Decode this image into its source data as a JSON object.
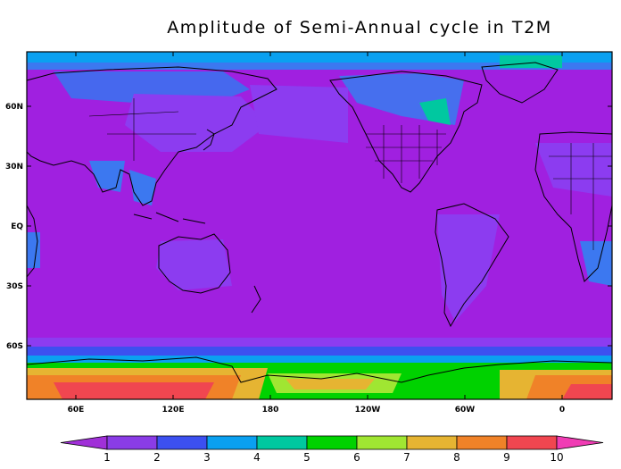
{
  "title": "Amplitude of Semi-Annual cycle in T2M",
  "lat_labels": [
    "60N",
    "30N",
    "EQ",
    "30S",
    "60S"
  ],
  "lon_labels": [
    "60E",
    "120E",
    "180",
    "120W",
    "60W",
    "0"
  ],
  "colorbar": {
    "ticks": [
      "1",
      "2",
      "3",
      "4",
      "5",
      "6",
      "7",
      "8",
      "9",
      "10"
    ],
    "colors": [
      "#a030d8",
      "#8a3ce6",
      "#3c50f0",
      "#0aa0f0",
      "#00c8a0",
      "#00d200",
      "#a0e632",
      "#e6b432",
      "#f08228",
      "#f04650",
      "#f03cb4"
    ]
  },
  "map_colors": {
    "background": "#a020e0",
    "level2": "#8c3cf0",
    "level3": "#3c50f0",
    "level4": "#0aa0f0",
    "level5": "#00c8a0",
    "level6": "#00d200",
    "level7": "#a0e632",
    "level8": "#e6b432",
    "level9": "#f08228",
    "level10": "#f04650"
  }
}
